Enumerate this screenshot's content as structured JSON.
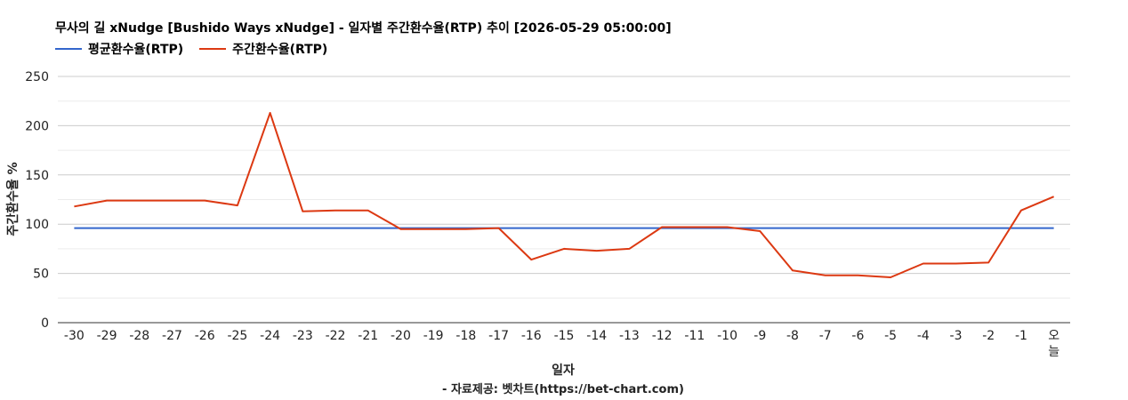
{
  "chart_data": {
    "type": "line",
    "title": "무사의 길 xNudge [Bushido Ways xNudge] - 일자별 주간환수율(RTP) 추이 [2026-05-29 05:00:00]",
    "xlabel": "일자",
    "ylabel": "주간환수율 %",
    "source": "- 자료제공: 벳차트(https://bet-chart.com)",
    "ylim": [
      0,
      250
    ],
    "yticks": [
      0,
      50,
      100,
      150,
      200,
      250
    ],
    "grid": true,
    "legend_position": "top-left",
    "categories": [
      "-30",
      "-29",
      "-28",
      "-27",
      "-26",
      "-25",
      "-24",
      "-23",
      "-22",
      "-21",
      "-20",
      "-19",
      "-18",
      "-17",
      "-16",
      "-15",
      "-14",
      "-13",
      "-12",
      "-11",
      "-10",
      "-9",
      "-8",
      "-7",
      "-6",
      "-5",
      "-4",
      "-3",
      "-2",
      "-1",
      "오늘"
    ],
    "series": [
      {
        "name": "평균환수율(RTP)",
        "color": "#3366cc",
        "values": [
          96,
          96,
          96,
          96,
          96,
          96,
          96,
          96,
          96,
          96,
          96,
          96,
          96,
          96,
          96,
          96,
          96,
          96,
          96,
          96,
          96,
          96,
          96,
          96,
          96,
          96,
          96,
          96,
          96,
          96,
          96
        ]
      },
      {
        "name": "주간환수율(RTP)",
        "color": "#dc3912",
        "values": [
          118,
          124,
          124,
          124,
          124,
          119,
          213,
          113,
          114,
          114,
          95,
          95,
          95,
          96,
          64,
          75,
          73,
          75,
          97,
          97,
          97,
          93,
          53,
          48,
          48,
          46,
          60,
          60,
          61,
          114,
          128
        ]
      }
    ]
  }
}
